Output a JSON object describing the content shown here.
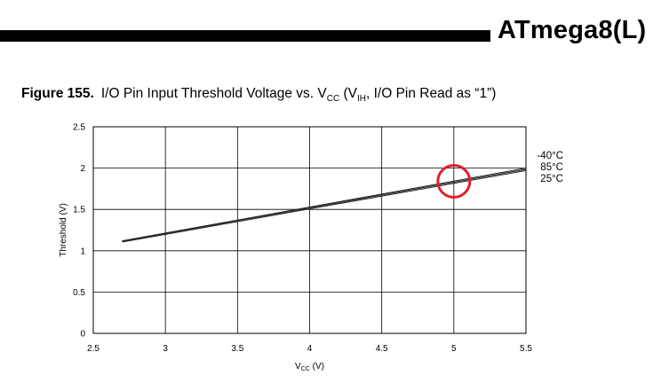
{
  "header": {
    "title": "ATmega8(L)"
  },
  "figure": {
    "number": "Figure 155.",
    "caption_main": "I/O Pin Input Threshold Voltage vs. V",
    "caption_sub1": "CC",
    "caption_mid": " (V",
    "caption_sub2": "IH",
    "caption_end": ", I/O Pin Read as “1”)"
  },
  "chart_data": {
    "type": "line",
    "title": "I/O Pin Input Threshold Voltage vs. VCC (VIH, I/O Pin Read as “1”)",
    "xlabel": "V",
    "xlabel_sub": "CC",
    "xlabel_unit": " (V)",
    "ylabel": "Threshold (V)",
    "xlim": [
      2.5,
      5.5
    ],
    "ylim": [
      0,
      2.5
    ],
    "x_ticks": [
      "2.5",
      "3",
      "3.5",
      "4",
      "4.5",
      "5",
      "5.5"
    ],
    "y_ticks": [
      "0",
      "0.5",
      "1",
      "1.5",
      "2",
      "2.5"
    ],
    "grid": true,
    "legend_position": "right-end",
    "series": [
      {
        "name": "-40°C",
        "x": [
          2.7,
          5.5
        ],
        "y": [
          1.12,
          2.0
        ]
      },
      {
        "name": "85°C",
        "x": [
          2.7,
          5.5
        ],
        "y": [
          1.115,
          1.985
        ]
      },
      {
        "name": "25°C",
        "x": [
          2.7,
          5.5
        ],
        "y": [
          1.105,
          1.97
        ]
      }
    ],
    "annotation": {
      "shape": "circle",
      "color": "#e0202a",
      "x": 5.0,
      "y": 1.84
    }
  }
}
